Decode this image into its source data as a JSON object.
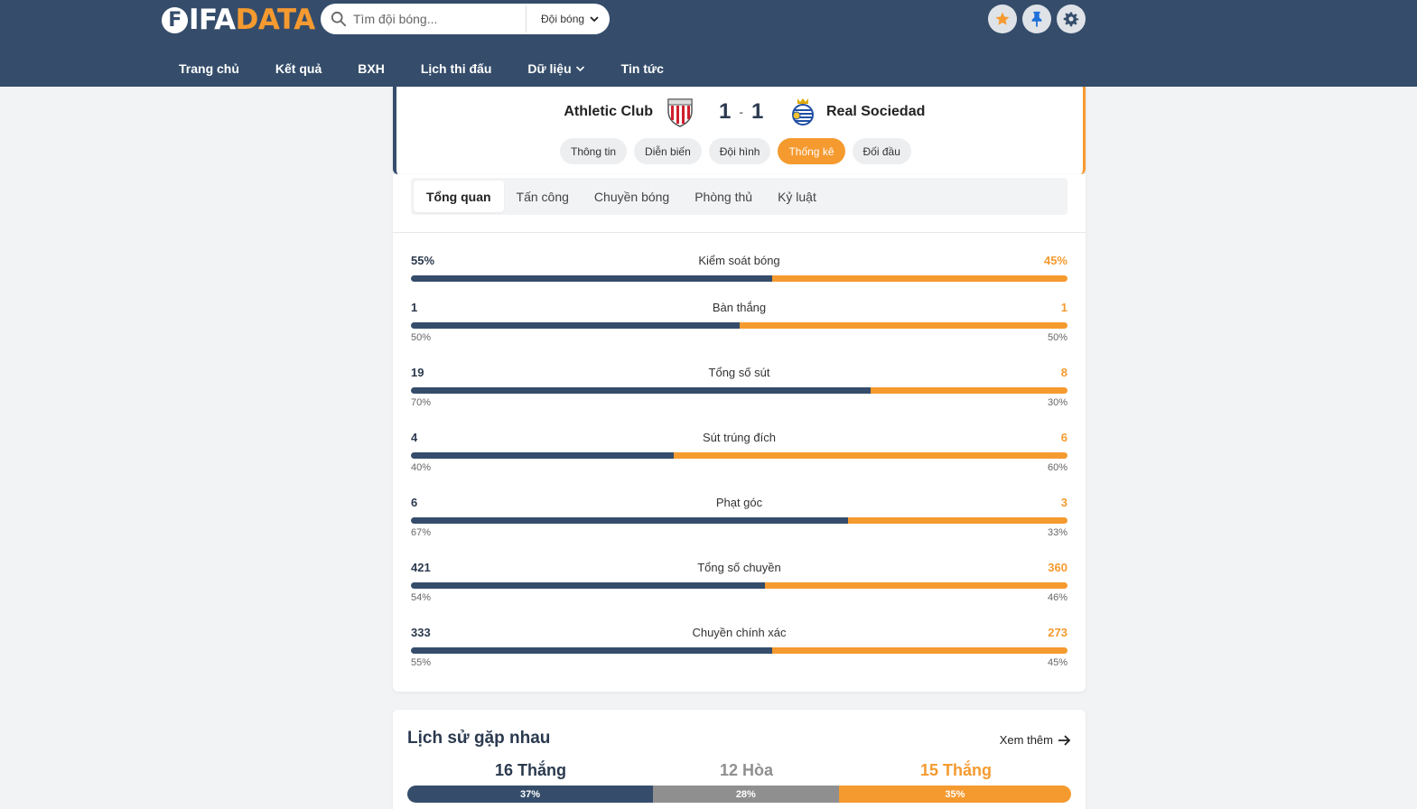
{
  "header": {
    "logo_first": "F",
    "logo_mid": "IFA",
    "logo_end": "DATA",
    "search_placeholder": "Tìm đội bóng...",
    "search_scope": "Đội bóng",
    "icons": [
      "star-icon",
      "pin-icon",
      "gear-icon"
    ],
    "nav": [
      "Trang chủ",
      "Kết quả",
      "BXH",
      "Lịch thi đấu",
      "Dữ liệu",
      "Tin tức"
    ]
  },
  "match": {
    "home": "Athletic Club",
    "away": "Real Sociedad",
    "home_score": "1",
    "separator": "-",
    "away_score": "1",
    "tabs": [
      "Thông tin",
      "Diễn biến",
      "Đội hình",
      "Thống kê",
      "Đối đầu"
    ],
    "active_tab": "Thống kê"
  },
  "stats": {
    "subtabs": [
      "Tổng quan",
      "Tấn công",
      "Chuyền bóng",
      "Phòng thủ",
      "Kỷ luật"
    ],
    "active_subtab": "Tổng quan",
    "items": [
      {
        "label": "Kiểm soát bóng",
        "home": "55%",
        "away": "45%",
        "home_share": 0.55
      },
      {
        "label": "Bàn thắng",
        "home": "1",
        "away": "1",
        "home_share": 0.5,
        "home_pct": "50%",
        "away_pct": "50%"
      },
      {
        "label": "Tổng số sút",
        "home": "19",
        "away": "8",
        "home_share": 0.7,
        "home_pct": "70%",
        "away_pct": "30%"
      },
      {
        "label": "Sút trúng đích",
        "home": "4",
        "away": "6",
        "home_share": 0.4,
        "home_pct": "40%",
        "away_pct": "60%"
      },
      {
        "label": "Phạt góc",
        "home": "6",
        "away": "3",
        "home_share": 0.666,
        "home_pct": "67%",
        "away_pct": "33%"
      },
      {
        "label": "Tổng số chuyền",
        "home": "421",
        "away": "360",
        "home_share": 0.539,
        "home_pct": "54%",
        "away_pct": "46%"
      },
      {
        "label": "Chuyền chính xác",
        "home": "333",
        "away": "273",
        "home_share": 0.55,
        "home_pct": "55%",
        "away_pct": "45%"
      }
    ]
  },
  "h2h": {
    "title": "Lịch sử gặp nhau",
    "more": "Xem thêm",
    "home_wins": "16 Thắng",
    "draws": "12 Hòa",
    "away_wins": "15 Thắng",
    "home_share": 0.37,
    "draw_share": 0.28,
    "away_share": 0.35,
    "home_pct": "37%",
    "draw_pct": "28%",
    "away_pct": "35%"
  },
  "colors": {
    "primary": "#354d6b",
    "accent": "#f59a2f",
    "draw": "#8f8f8f"
  }
}
